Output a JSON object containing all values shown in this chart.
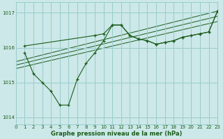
{
  "title": "Graphe pression niveau de la mer (hPa)",
  "bg_color": "#cce8e8",
  "grid_color": "#99cccc",
  "line_color": "#1a5c1a",
  "xlim": [
    0,
    23
  ],
  "ylim": [
    1013.8,
    1017.3
  ],
  "yticks": [
    1014,
    1015,
    1016,
    1017
  ],
  "xticks": [
    0,
    1,
    2,
    3,
    4,
    5,
    6,
    7,
    8,
    9,
    10,
    11,
    12,
    13,
    14,
    15,
    16,
    17,
    18,
    19,
    20,
    21,
    22,
    23
  ],
  "series_jagged": {
    "x": [
      1,
      2,
      3,
      4,
      5,
      6,
      7,
      8,
      9,
      10,
      11,
      12,
      13,
      14,
      15,
      16,
      17,
      18,
      19,
      20,
      21,
      22,
      23
    ],
    "y": [
      1015.85,
      1015.25,
      1015.0,
      1014.75,
      1014.35,
      1014.35,
      1015.1,
      1015.55,
      1015.85,
      1016.2,
      1016.65,
      1016.65,
      1016.35,
      1016.25,
      1016.2,
      1016.1,
      1016.15,
      1016.2,
      1016.3,
      1016.35,
      1016.4,
      1016.45,
      1017.05
    ]
  },
  "series_straight": [
    {
      "x": [
        0,
        23
      ],
      "y": [
        1015.6,
        1017.05
      ]
    },
    {
      "x": [
        0,
        23
      ],
      "y": [
        1015.5,
        1016.9
      ]
    },
    {
      "x": [
        0,
        23
      ],
      "y": [
        1015.4,
        1016.75
      ]
    }
  ],
  "series_upper": {
    "x": [
      1,
      9,
      10,
      11,
      12,
      13,
      14,
      15,
      16,
      17,
      18,
      19,
      20,
      21,
      22,
      23
    ],
    "y": [
      1016.05,
      1016.35,
      1016.4,
      1016.65,
      1016.65,
      1016.35,
      1016.25,
      1016.2,
      1016.1,
      1016.15,
      1016.2,
      1016.3,
      1016.35,
      1016.4,
      1016.45,
      1017.05
    ]
  }
}
